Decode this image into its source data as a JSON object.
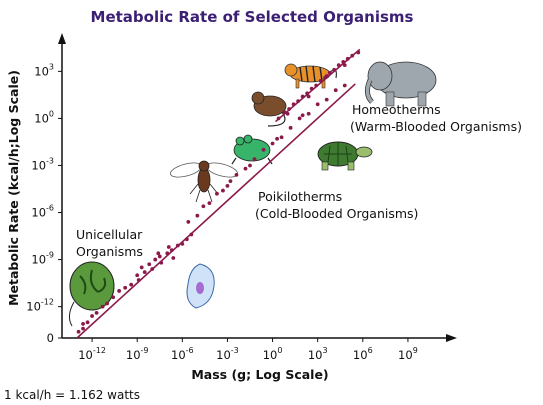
{
  "chart_data": {
    "type": "scatter",
    "title": "Metabolic Rate of Selected Organisms",
    "xlabel": "Mass (g; Log Scale)",
    "ylabel": "Metabolic Rate (kcal/h;Log Scale)",
    "x_scale": "log",
    "y_scale": "log",
    "xlim": [
      1e-14,
      100000000000.0
    ],
    "ylim": [
      1e-14,
      100000.0
    ],
    "x_ticks": [
      {
        "base": "10",
        "exp": "-12",
        "value": 1e-12
      },
      {
        "base": "10",
        "exp": "-9",
        "value": 1e-09
      },
      {
        "base": "10",
        "exp": "-6",
        "value": 1e-06
      },
      {
        "base": "10",
        "exp": "-3",
        "value": 0.001
      },
      {
        "base": "10",
        "exp": "0",
        "value": 1
      },
      {
        "base": "10",
        "exp": "3",
        "value": 1000.0
      },
      {
        "base": "10",
        "exp": "6",
        "value": 1000000.0
      },
      {
        "base": "10",
        "exp": "9",
        "value": 1000000000.0
      }
    ],
    "y_ticks": [
      {
        "base": "0",
        "exp": "",
        "value": 1e-14
      },
      {
        "base": "10",
        "exp": "-12",
        "value": 1e-12
      },
      {
        "base": "10",
        "exp": "-9",
        "value": 1e-09
      },
      {
        "base": "10",
        "exp": "-6",
        "value": 1e-06
      },
      {
        "base": "10",
        "exp": "-3",
        "value": 0.001
      },
      {
        "base": "10",
        "exp": "0",
        "value": 1
      },
      {
        "base": "10",
        "exp": "3",
        "value": 1000.0
      }
    ],
    "grid": false,
    "point_color": "#8b1a4a",
    "line_color": "#8b1a4a",
    "series": [
      {
        "group": "unicellular",
        "label": "Unicellular\nOrganisms",
        "points": [
          [
            -12.9,
            -13.6
          ],
          [
            -12.6,
            -13.4
          ],
          [
            -12.3,
            -13.0
          ],
          [
            -12.6,
            -13.1
          ],
          [
            -12.0,
            -12.6
          ],
          [
            -11.7,
            -12.4
          ],
          [
            -11.0,
            -11.8
          ],
          [
            -10.6,
            -11.4
          ],
          [
            -10.2,
            -11.0
          ],
          [
            -9.8,
            -10.8
          ],
          [
            -9.0,
            -10.0
          ],
          [
            -8.7,
            -9.5
          ],
          [
            -8.5,
            -9.8
          ],
          [
            -8.2,
            -9.3
          ],
          [
            -8.0,
            -9.6
          ],
          [
            -7.8,
            -9.0
          ],
          [
            -7.5,
            -8.8
          ],
          [
            -7.4,
            -9.2
          ],
          [
            -7.0,
            -8.6
          ],
          [
            -6.7,
            -8.4
          ],
          [
            -6.6,
            -8.9
          ],
          [
            -6.3,
            -8.1
          ],
          [
            -6.0,
            -8.0
          ],
          [
            -5.7,
            -7.7
          ],
          [
            -8.9,
            -10.3
          ],
          [
            -7.6,
            -8.6
          ],
          [
            -6.9,
            -8.2
          ],
          [
            -5.4,
            -7.4
          ],
          [
            -9.4,
            -10.6
          ],
          [
            -11.3,
            -12.0
          ]
        ]
      },
      {
        "group": "poikilotherms",
        "label": "Poikilotherms\n(Cold-Blooded Organisms)",
        "points": [
          [
            -5.6,
            -6.6
          ],
          [
            -5.0,
            -6.2
          ],
          [
            -4.6,
            -5.6
          ],
          [
            -4.2,
            -5.4
          ],
          [
            -3.7,
            -4.8
          ],
          [
            -3.3,
            -4.6
          ],
          [
            -2.8,
            -4.0
          ],
          [
            -2.4,
            -3.6
          ],
          [
            -1.8,
            -3.2
          ],
          [
            -1.2,
            -2.6
          ],
          [
            -0.6,
            -2.0
          ],
          [
            0.0,
            -1.6
          ],
          [
            0.6,
            -1.2
          ],
          [
            1.2,
            -0.6
          ],
          [
            1.8,
            0.0
          ],
          [
            2.4,
            0.3
          ],
          [
            3.0,
            0.9
          ],
          [
            3.6,
            1.2
          ],
          [
            4.2,
            1.8
          ],
          [
            4.8,
            2.1
          ],
          [
            -3.0,
            -4.3
          ],
          [
            -1.5,
            -3.0
          ],
          [
            0.3,
            -1.3
          ],
          [
            2.0,
            0.2
          ]
        ]
      },
      {
        "group": "homeotherms",
        "label": "Homeotherms\n(Warm-Blooded Organisms)",
        "points": [
          [
            0.4,
            0.0
          ],
          [
            0.8,
            0.4
          ],
          [
            1.1,
            0.6
          ],
          [
            1.4,
            0.9
          ],
          [
            1.7,
            1.1
          ],
          [
            2.0,
            1.4
          ],
          [
            2.3,
            1.6
          ],
          [
            2.6,
            1.9
          ],
          [
            2.9,
            2.1
          ],
          [
            3.2,
            2.4
          ],
          [
            3.5,
            2.6
          ],
          [
            3.8,
            2.9
          ],
          [
            4.1,
            3.1
          ],
          [
            4.4,
            3.4
          ],
          [
            4.7,
            3.6
          ],
          [
            5.0,
            3.8
          ],
          [
            5.3,
            4.0
          ],
          [
            5.7,
            4.2
          ],
          [
            1.0,
            0.3
          ],
          [
            2.4,
            1.4
          ],
          [
            3.6,
            2.7
          ],
          [
            4.8,
            3.4
          ]
        ]
      }
    ],
    "fit_lines": [
      {
        "group": "cold",
        "from": [
          -13.0,
          -14.0
        ],
        "to": [
          5.5,
          2.2
        ]
      },
      {
        "group": "warm",
        "from": [
          0.2,
          -0.2
        ],
        "to": [
          5.8,
          4.4
        ]
      }
    ],
    "annotations": {
      "homeotherms": "Homeotherms\n(Warm-Blooded Organisms)",
      "poikilotherms": "Poikilotherms\n(Cold-Blooded Organisms)",
      "unicellular": "Unicellular\nOrganisms"
    },
    "footnote": "1 kcal/h = 1.162 watts"
  }
}
